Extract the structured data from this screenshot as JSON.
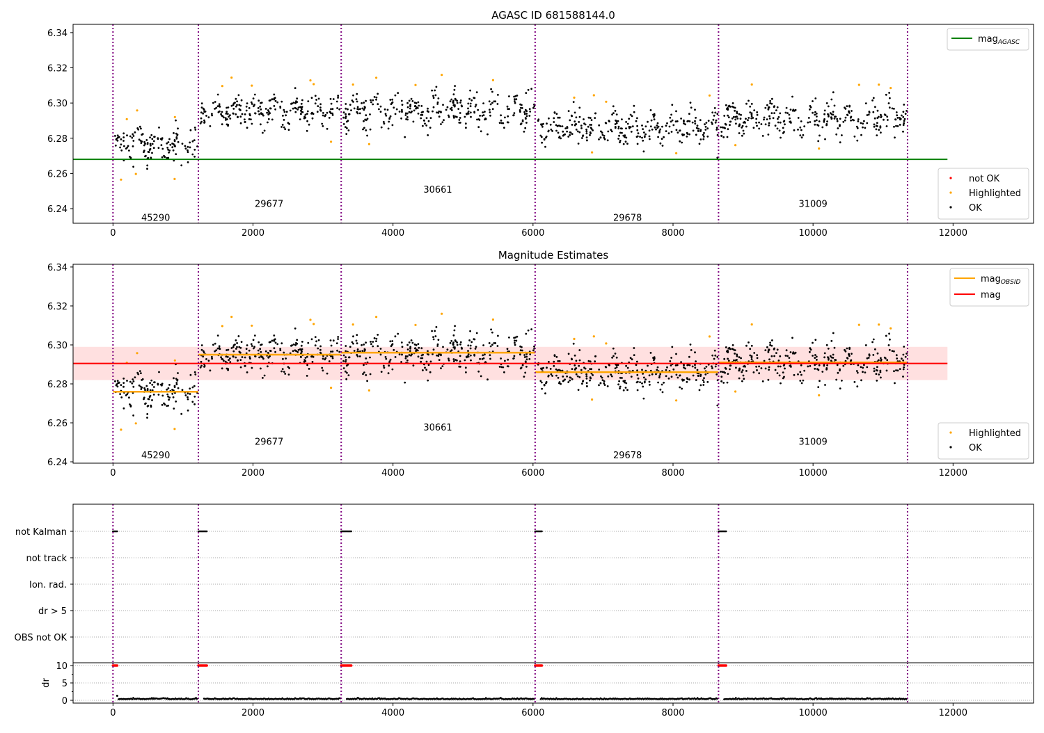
{
  "chart_data": [
    {
      "type": "scatter",
      "title": "AGASC ID 681588144.0",
      "xlim": [
        -570,
        13150
      ],
      "ylim": [
        6.2317,
        6.3447
      ],
      "xticks": [
        0,
        2000,
        4000,
        6000,
        8000,
        10000,
        12000
      ],
      "yticks": [
        6.24,
        6.26,
        6.28,
        6.3,
        6.32,
        6.34
      ],
      "mag_agasc": 6.268,
      "legend_top": [
        {
          "label": "mag",
          "sub": "AGASC",
          "color": "#008000"
        }
      ],
      "legend_bottom": [
        {
          "label": "not OK",
          "color": "#ff0000"
        },
        {
          "label": "Highlighted",
          "color": "#ffa500"
        },
        {
          "label": "OK",
          "color": "#000000"
        }
      ],
      "obs_labels": [
        {
          "text": "45290",
          "x": 610,
          "y": 6.235
        },
        {
          "text": "29677",
          "x": 2230,
          "y": 6.243
        },
        {
          "text": "30661",
          "x": 4640,
          "y": 6.251
        },
        {
          "text": "29678",
          "x": 7350,
          "y": 6.235
        },
        {
          "text": "31009",
          "x": 10000,
          "y": 6.243
        }
      ]
    },
    {
      "type": "scatter",
      "title": "Magnitude Estimates",
      "xlim": [
        -570,
        13150
      ],
      "ylim": [
        6.2393,
        6.3414
      ],
      "xticks": [
        0,
        2000,
        4000,
        6000,
        8000,
        10000,
        12000
      ],
      "yticks": [
        6.24,
        6.26,
        6.28,
        6.3,
        6.32,
        6.34
      ],
      "mag": 6.2905,
      "mag_band": [
        6.282,
        6.299
      ],
      "legend_top": [
        {
          "label": "mag",
          "sub": "OBSID",
          "color": "#ffa500"
        },
        {
          "label": "mag",
          "sub": "",
          "color": "#ff0000"
        }
      ],
      "legend_bottom": [
        {
          "label": "Highlighted",
          "color": "#ffa500"
        },
        {
          "label": "OK",
          "color": "#000000"
        }
      ],
      "obs_labels": [
        {
          "text": "45290",
          "x": 610,
          "y": 6.2435
        },
        {
          "text": "29677",
          "x": 2230,
          "y": 6.2506
        },
        {
          "text": "30661",
          "x": 4640,
          "y": 6.2578
        },
        {
          "text": "29678",
          "x": 7350,
          "y": 6.2435
        },
        {
          "text": "31009",
          "x": 10000,
          "y": 6.2506
        }
      ]
    },
    {
      "type": "scatter",
      "title": "",
      "categories": [
        "not Kalman",
        "not track",
        "Ion. rad.",
        "dr > 5",
        "OBS not OK"
      ],
      "flag_ranges": {
        "not Kalman": [
          [
            0,
            70
          ],
          [
            1220,
            1350
          ],
          [
            3260,
            3410
          ],
          [
            6030,
            6130
          ],
          [
            8650,
            8760
          ]
        ]
      }
    },
    {
      "type": "scatter",
      "ylabel": "dr",
      "yticks": [
        0,
        5,
        10
      ],
      "ylim": [
        -0.8,
        10.8
      ],
      "xticks": [
        0,
        2000,
        4000,
        6000,
        8000,
        10000,
        12000
      ],
      "dr_typical": 0.3,
      "dr_flagged": 10
    }
  ],
  "segments": [
    {
      "obsid": "45290",
      "start": 0,
      "end": 1220,
      "mean": 6.276,
      "sd": 0.0055
    },
    {
      "obsid": "29677",
      "start": 1220,
      "end": 3260,
      "mean": 6.295,
      "sd": 0.0048
    },
    {
      "obsid": "30661",
      "start": 3260,
      "end": 6030,
      "mean": 6.296,
      "sd": 0.0058
    },
    {
      "obsid": "29678",
      "start": 6030,
      "end": 8650,
      "mean": 6.286,
      "sd": 0.0055
    },
    {
      "obsid": "31009",
      "start": 8650,
      "end": 11350,
      "mean": 6.291,
      "sd": 0.0058
    }
  ],
  "boundaries": [
    0,
    1220,
    3260,
    6030,
    8650,
    11350
  ],
  "colors": {
    "ok": "#000000",
    "highlight": "#ffa500",
    "notok": "#ff0000",
    "agasc": "#008000",
    "boundary": "#800080",
    "band": "#ffcccc"
  }
}
